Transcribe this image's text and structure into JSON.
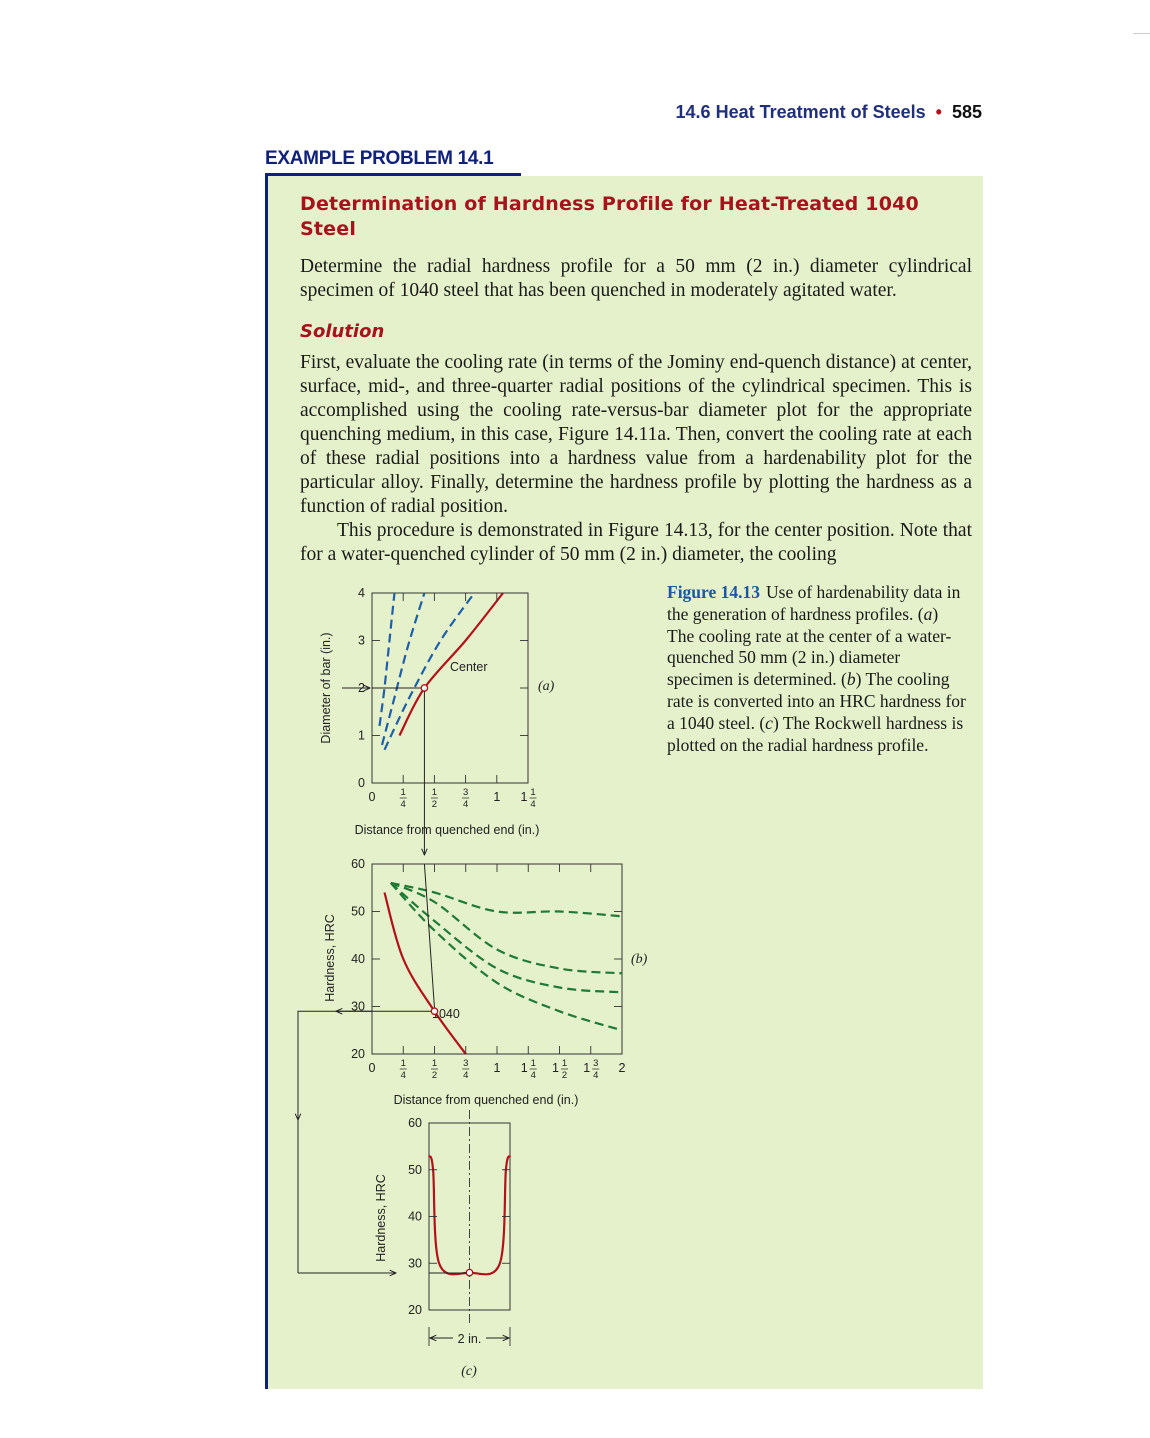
{
  "header": {
    "section": "14.6 Heat Treatment of Steels",
    "page_number": "585"
  },
  "example": {
    "label": "EXAMPLE PROBLEM 14.1",
    "title": "Determination of Hardness Profile for Heat-Treated 1040 Steel",
    "problem": "Determine the radial hardness profile for a 50 mm (2 in.) diameter cylindrical specimen of 1040 steel that has been quenched in moderately agitated water.",
    "solution_heading": "Solution",
    "solution_p1": "First, evaluate the cooling rate (in terms of the Jominy end-quench distance) at center, surface, mid-, and three-quarter radial positions of the cylindrical specimen. This is accomplished using the cooling rate-versus-bar diameter plot for the appropriate quenching medium, in this case, Figure 14.11a. Then, convert the cooling rate at each of these radial positions into a hardness value from a hardenability plot for the particular alloy. Finally, determine the hardness profile by plotting the hardness as a function of radial position.",
    "solution_p2": "This procedure is demonstrated in Figure 14.13, for the center position. Note that for a water-quenched cylinder of 50 mm (2 in.) diameter, the cooling"
  },
  "figure": {
    "number": "Figure 14.13",
    "caption_parts": [
      "Use of hardenability data in the generation of hardness profiles. (",
      "a",
      ") The cooling rate at the center of a water-quenched 50 mm (2 in.) diameter specimen is determined. (",
      "b",
      ") The cooling rate is converted into an HRC hardness for a 1040 steel. (",
      "c",
      ") The Rockwell hardness is plotted on the radial hardness profile."
    ]
  },
  "chart_data": [
    {
      "panel": "(a)",
      "type": "line",
      "xlabel": "Distance from quenched end (in.)",
      "ylabel": "Diameter of bar (in.)",
      "xlim": [
        0,
        1.25
      ],
      "ylim": [
        0,
        4
      ],
      "x_ticks": [
        "0",
        "1/4",
        "1/2",
        "3/4",
        "1",
        "1 1/4"
      ],
      "y_ticks": [
        "0",
        "1",
        "2",
        "3",
        "4"
      ],
      "series": [
        {
          "name": "curve-1 (dashed)",
          "style": "dashed",
          "color": "#1f5fa8",
          "x": [
            0.06,
            0.1,
            0.14,
            0.18
          ],
          "y": [
            1.2,
            2.0,
            3.0,
            4.0
          ]
        },
        {
          "name": "curve-2 (dashed)",
          "style": "dashed",
          "color": "#1f5fa8",
          "x": [
            0.08,
            0.18,
            0.29,
            0.42
          ],
          "y": [
            0.8,
            1.8,
            2.9,
            4.0
          ]
        },
        {
          "name": "curve-3 (dashed)",
          "style": "dashed",
          "color": "#1f5fa8",
          "x": [
            0.1,
            0.3,
            0.55,
            0.82
          ],
          "y": [
            0.7,
            1.8,
            3.0,
            4.0
          ]
        },
        {
          "name": "Center",
          "style": "solid",
          "color": "#b3121b",
          "x": [
            0.22,
            0.42,
            0.75,
            1.05
          ],
          "y": [
            1.0,
            2.0,
            3.0,
            4.0
          ]
        }
      ],
      "annotations": [
        {
          "label": "Center",
          "x": 0.42,
          "y": 2.0
        }
      ]
    },
    {
      "panel": "(b)",
      "type": "line",
      "xlabel": "Distance from quenched end (in.)",
      "ylabel": "Hardness, HRC",
      "xlim": [
        0,
        2
      ],
      "ylim": [
        20,
        60
      ],
      "x_ticks": [
        "0",
        "1/4",
        "1/2",
        "3/4",
        "1",
        "1 1/4",
        "1 1/2",
        "1 3/4",
        "2"
      ],
      "y_ticks": [
        "20",
        "30",
        "40",
        "50",
        "60"
      ],
      "series": [
        {
          "name": "alloy-1 (dashed)",
          "style": "dashed",
          "color": "#1e7a34",
          "x": [
            0.15,
            0.5,
            1.0,
            1.5,
            2.0
          ],
          "y": [
            56,
            54,
            50,
            50,
            49
          ]
        },
        {
          "name": "alloy-2 (dashed)",
          "style": "dashed",
          "color": "#1e7a34",
          "x": [
            0.15,
            0.5,
            1.0,
            1.5,
            2.0
          ],
          "y": [
            56,
            52,
            42,
            38,
            37
          ]
        },
        {
          "name": "alloy-3 (dashed)",
          "style": "dashed",
          "color": "#1e7a34",
          "x": [
            0.15,
            0.5,
            1.0,
            1.5,
            2.0
          ],
          "y": [
            56,
            48,
            38,
            34,
            33
          ]
        },
        {
          "name": "alloy-4 (dashed)",
          "style": "dashed",
          "color": "#1e7a34",
          "x": [
            0.15,
            0.5,
            1.0,
            1.5,
            2.0
          ],
          "y": [
            56,
            46,
            35,
            29,
            25
          ]
        },
        {
          "name": "1040",
          "style": "solid",
          "color": "#b3121b",
          "x": [
            0.1,
            0.25,
            0.5,
            0.75
          ],
          "y": [
            54,
            40,
            29,
            20
          ]
        }
      ],
      "annotations": [
        {
          "label": "1040",
          "x": 0.5,
          "y": 29
        }
      ]
    },
    {
      "panel": "(c)",
      "type": "line",
      "ylabel": "Hardness, HRC",
      "ylim": [
        20,
        60
      ],
      "y_ticks": [
        "20",
        "30",
        "40",
        "50",
        "60"
      ],
      "width_label": "2 in.",
      "series": [
        {
          "name": "radial hardness profile",
          "style": "solid",
          "color": "#b3121b",
          "x": [
            -1,
            -0.9,
            -0.75,
            0,
            0.75,
            0.9,
            1
          ],
          "y": [
            53,
            50,
            30,
            28,
            30,
            50,
            53
          ]
        }
      ]
    }
  ]
}
